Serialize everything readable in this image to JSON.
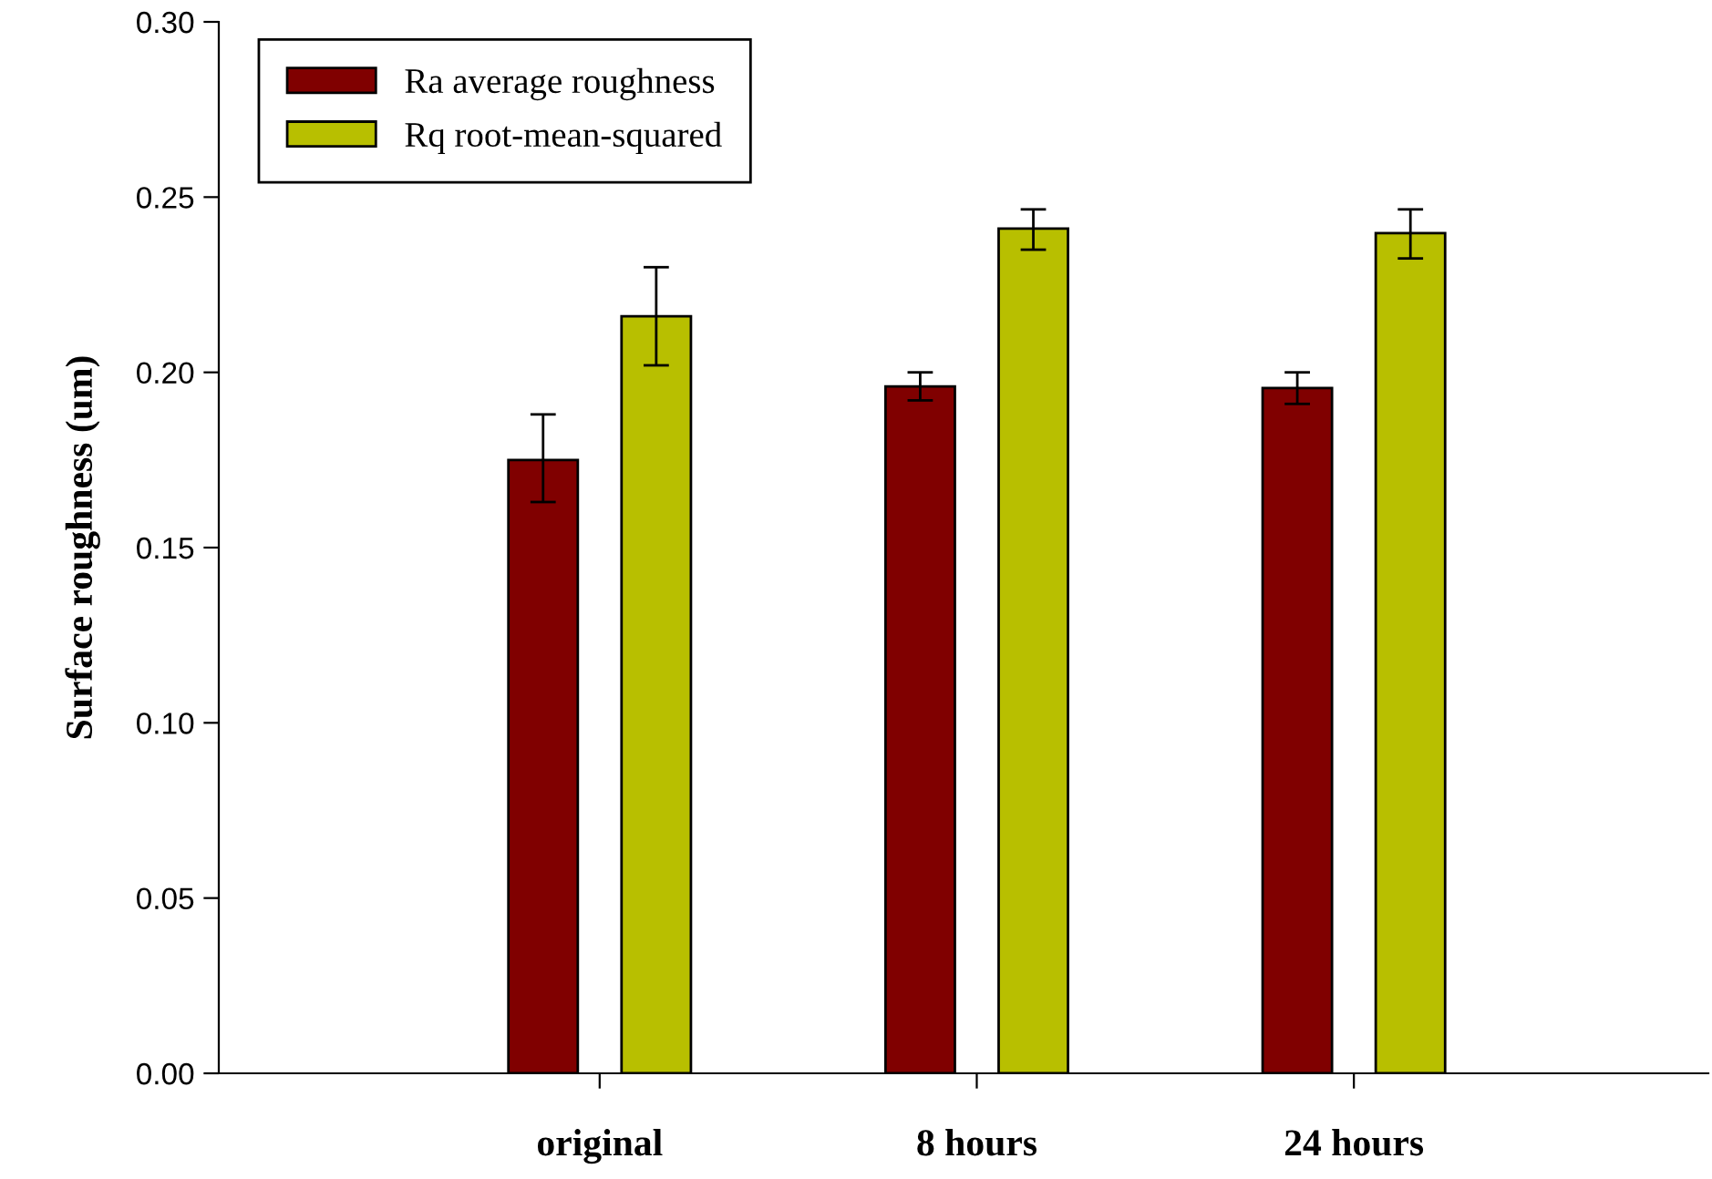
{
  "chart_data": {
    "type": "bar",
    "xlabel": null,
    "ylabel": "Surface roughness (um)",
    "categories": [
      "original",
      "8 hours",
      "24 hours"
    ],
    "series": [
      {
        "name": "Ra average roughness",
        "color": "#800000",
        "values": [
          0.175,
          0.196,
          0.1955
        ],
        "errors": [
          [
            0.163,
            0.188
          ],
          [
            0.192,
            0.2
          ],
          [
            0.191,
            0.2
          ]
        ]
      },
      {
        "name": "Rq root-mean-squared",
        "color": "#b8bf00",
        "values": [
          0.216,
          0.241,
          0.2397
        ],
        "errors": [
          [
            0.202,
            0.23
          ],
          [
            0.235,
            0.2465
          ],
          [
            0.2325,
            0.2465
          ]
        ]
      }
    ],
    "ylim": [
      0,
      0.3
    ],
    "yticks": [
      {
        "value": 0,
        "label": "0.00"
      },
      {
        "value": 0.05,
        "label": "0.05"
      },
      {
        "value": 0.1,
        "label": "0.10"
      },
      {
        "value": 0.15,
        "label": "0.15"
      },
      {
        "value": 0.2,
        "label": "0.20"
      },
      {
        "value": 0.25,
        "label": "0.25"
      },
      {
        "value": 0.3,
        "label": "0.30"
      }
    ],
    "grid": false,
    "legend": "top left"
  }
}
